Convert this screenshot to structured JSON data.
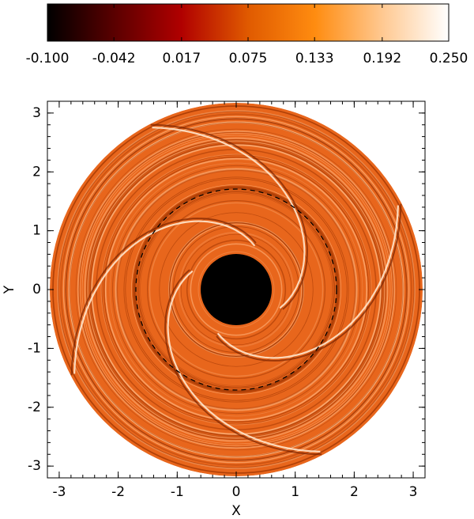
{
  "chart_data": {
    "type": "image",
    "xlabel": "X",
    "ylabel": "Y",
    "xlim": [
      -3.2,
      3.2
    ],
    "ylim": [
      -3.2,
      3.2
    ],
    "xticks": [
      -3,
      -2,
      -1,
      0,
      1,
      2,
      3
    ],
    "yticks": [
      -3,
      -2,
      -1,
      0,
      1,
      2,
      3
    ],
    "colorbar": {
      "clim": [
        -0.1,
        0.25
      ],
      "colormap": [
        "#000000",
        "#5a0000",
        "#b00000",
        "#e05a00",
        "#ff8c10",
        "#ffc890",
        "#ffffff"
      ],
      "ticks": [
        {
          "value": -0.1,
          "label": "-0.100"
        },
        {
          "value": -0.042,
          "label": "-0.042"
        },
        {
          "value": 0.017,
          "label": "0.017"
        },
        {
          "value": 0.075,
          "label": "0.075"
        },
        {
          "value": 0.133,
          "label": "0.133"
        },
        {
          "value": 0.192,
          "label": "0.192"
        },
        {
          "value": 0.25,
          "label": "0.250"
        }
      ]
    }
  }
}
